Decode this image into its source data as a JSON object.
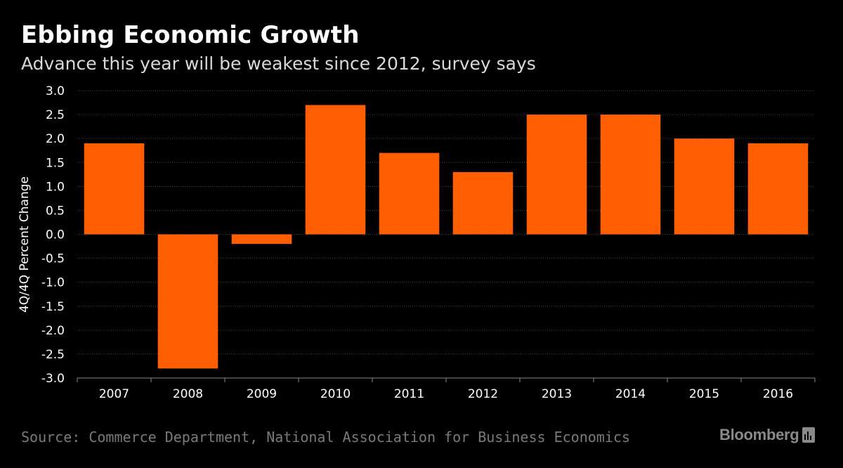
{
  "header": {
    "title": "Ebbing Economic Growth",
    "subtitle": "Advance this year will be weakest since 2012, survey says"
  },
  "footer": {
    "source": "Source: Commerce Department, National Association for Business Economics",
    "brand": "Bloomberg"
  },
  "colors": {
    "bar": "#ff5f00",
    "gridline": "#444444",
    "axis": "#888888",
    "text": "#ffffff"
  },
  "chart_data": {
    "type": "bar",
    "title": "Ebbing Economic Growth",
    "subtitle": "Advance this year will be weakest since 2012, survey says",
    "xlabel": "",
    "ylabel": "4Q/4Q Percent Change",
    "categories": [
      "2007",
      "2008",
      "2009",
      "2010",
      "2011",
      "2012",
      "2013",
      "2014",
      "2015",
      "2016"
    ],
    "values": [
      1.9,
      -2.8,
      -0.2,
      2.7,
      1.7,
      1.3,
      2.5,
      2.5,
      2.0,
      1.9
    ],
    "ylim": [
      -3.0,
      3.0
    ],
    "yticks": [
      "3.0",
      "2.5",
      "2.0",
      "1.5",
      "1.0",
      "0.5",
      "0.0",
      "-0.5",
      "-1.0",
      "-1.5",
      "-2.0",
      "-2.5",
      "-3.0"
    ],
    "grid": true,
    "legend": "none"
  }
}
